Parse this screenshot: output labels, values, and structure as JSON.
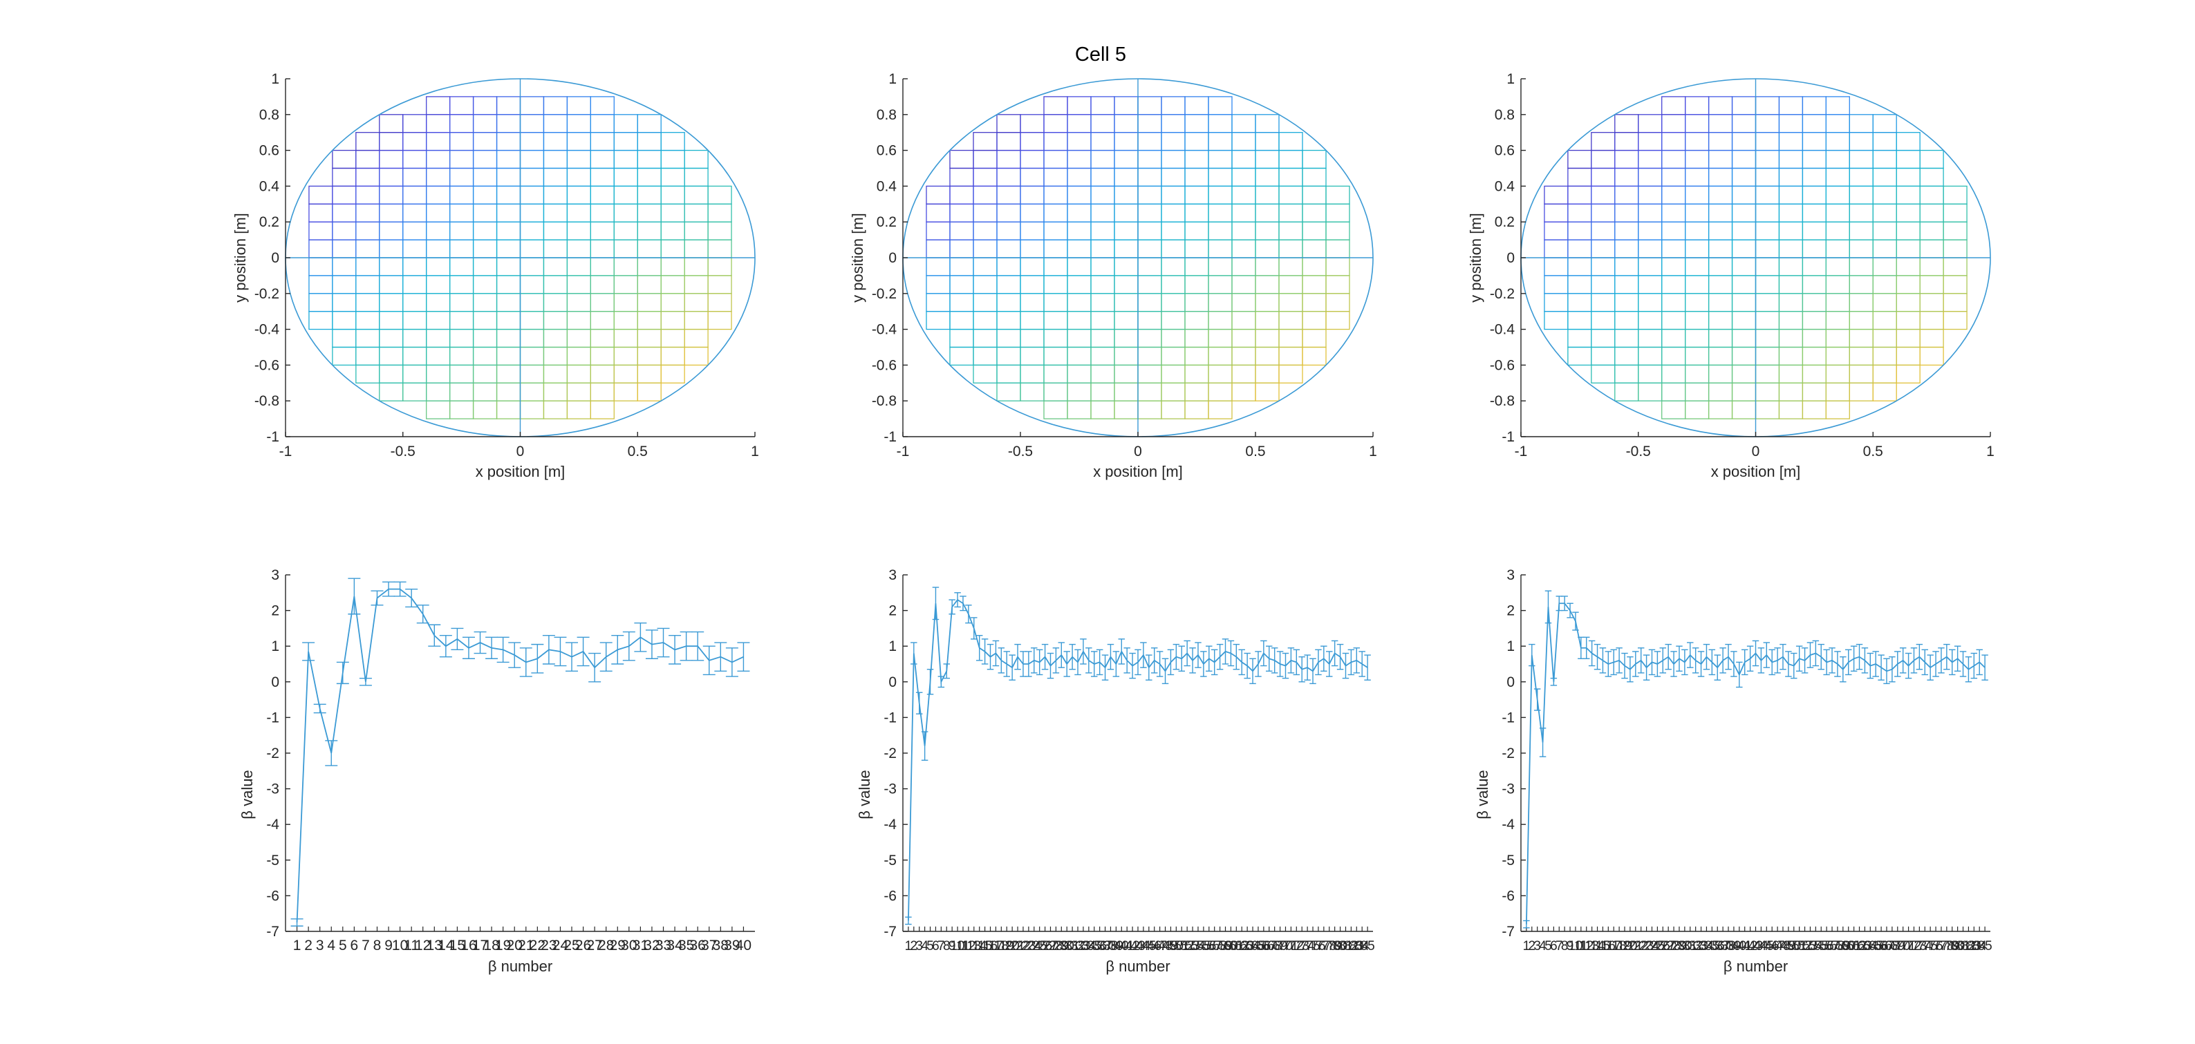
{
  "figure": {
    "title": "Cell 5",
    "line_color": "#3b9ad5",
    "axis_color": "#262626"
  },
  "chart_data": [
    {
      "type": "scatter",
      "name": "grid-map-1",
      "xlabel": "x position [m]",
      "ylabel": "y position [m]",
      "xlim": [
        -1,
        1
      ],
      "ylim": [
        -1,
        1
      ],
      "xticks": [
        "-1",
        "-0.5",
        "0",
        "0.5",
        "1"
      ],
      "yticks": [
        "1",
        "0.8",
        "0.6",
        "0.4",
        "0.2",
        "0",
        "-0.2",
        "-0.4",
        "-0.6",
        "-0.8",
        "-1"
      ],
      "boundary": "unit circle",
      "cell_size": 0.1,
      "colormap": "parula"
    },
    {
      "type": "scatter",
      "name": "grid-map-2",
      "xlabel": "x position [m]",
      "ylabel": "y position [m]",
      "xlim": [
        -1,
        1
      ],
      "ylim": [
        -1,
        1
      ],
      "xticks": [
        "-1",
        "-0.5",
        "0",
        "0.5",
        "1"
      ],
      "yticks": [
        "1",
        "0.8",
        "0.6",
        "0.4",
        "0.2",
        "0",
        "-0.2",
        "-0.4",
        "-0.6",
        "-0.8",
        "-1"
      ],
      "boundary": "unit circle",
      "cell_size": 0.1,
      "colormap": "parula"
    },
    {
      "type": "scatter",
      "name": "grid-map-3",
      "xlabel": "x position [m]",
      "ylabel": "y position [m]",
      "xlim": [
        -1,
        1
      ],
      "ylim": [
        -1,
        1
      ],
      "xticks": [
        "-1",
        "-0.5",
        "0",
        "0.5",
        "1"
      ],
      "yticks": [
        "1",
        "0.8",
        "0.6",
        "0.4",
        "0.2",
        "0",
        "-0.2",
        "-0.4",
        "-0.6",
        "-0.8",
        "-1"
      ],
      "boundary": "unit circle",
      "cell_size": 0.1,
      "colormap": "parula"
    },
    {
      "type": "line",
      "name": "beta-plot-1",
      "xlabel": "β number",
      "ylabel": "β value",
      "ylim": [
        -7,
        3
      ],
      "yticks": [
        "3",
        "2",
        "1",
        "0",
        "-1",
        "-2",
        "-3",
        "-4",
        "-5",
        "-6",
        "-7"
      ],
      "error_bars": true,
      "x": [
        1,
        2,
        3,
        4,
        5,
        6,
        7,
        8,
        9,
        10,
        11,
        12,
        13,
        14,
        15,
        16,
        17,
        18,
        19,
        20,
        21,
        22,
        23,
        24,
        25,
        26,
        27,
        28,
        29,
        30,
        31,
        32,
        33,
        34,
        35,
        36,
        37,
        38,
        39,
        40
      ],
      "xtick_labels": [
        "1",
        "2",
        "3",
        "4",
        "5",
        "6",
        "7",
        "8",
        "9",
        "10",
        "11",
        "12",
        "13",
        "14",
        "15",
        "16",
        "17",
        "18",
        "19",
        "20",
        "21",
        "22",
        "23",
        "24",
        "25",
        "26",
        "27",
        "28",
        "29",
        "30",
        "31",
        "32",
        "33",
        "34",
        "35",
        "36",
        "37",
        "38",
        "39",
        "40"
      ],
      "values": [
        -6.75,
        0.85,
        -0.75,
        -2.0,
        0.25,
        2.4,
        0.0,
        2.35,
        2.6,
        2.6,
        2.35,
        1.9,
        1.3,
        1.0,
        1.2,
        0.95,
        1.1,
        0.95,
        0.9,
        0.75,
        0.55,
        0.65,
        0.9,
        0.85,
        0.7,
        0.85,
        0.4,
        0.7,
        0.9,
        1.0,
        1.25,
        1.05,
        1.1,
        0.9,
        1.0,
        1.0,
        0.6,
        0.7,
        0.55,
        0.7
      ],
      "errors": [
        0.1,
        0.25,
        0.12,
        0.35,
        0.3,
        0.5,
        0.1,
        0.2,
        0.2,
        0.2,
        0.25,
        0.25,
        0.3,
        0.3,
        0.3,
        0.3,
        0.3,
        0.3,
        0.35,
        0.35,
        0.4,
        0.4,
        0.4,
        0.4,
        0.4,
        0.4,
        0.4,
        0.4,
        0.4,
        0.4,
        0.4,
        0.4,
        0.4,
        0.4,
        0.4,
        0.4,
        0.4,
        0.4,
        0.4,
        0.4
      ]
    },
    {
      "type": "line",
      "name": "beta-plot-2",
      "xlabel": "β number",
      "ylabel": "β value",
      "ylim": [
        -7,
        3
      ],
      "yticks": [
        "3",
        "2",
        "1",
        "0",
        "-1",
        "-2",
        "-3",
        "-4",
        "-5",
        "-6",
        "-7"
      ],
      "error_bars": true,
      "x": [
        1,
        2,
        3,
        4,
        5,
        6,
        7,
        8,
        9,
        10,
        11,
        12,
        13,
        14,
        15,
        16,
        17,
        18,
        19,
        20,
        21,
        22,
        23,
        24,
        25,
        26,
        27,
        28,
        29,
        30,
        31,
        32,
        33,
        34,
        35,
        36,
        37,
        38,
        39,
        40,
        41,
        42,
        43,
        44,
        45,
        46,
        47,
        48,
        49,
        50,
        51,
        52,
        53,
        54,
        55,
        56,
        57,
        58,
        59,
        60,
        61,
        62,
        63,
        64,
        65,
        66,
        67,
        68,
        69,
        70,
        71,
        72,
        73,
        74,
        75,
        76,
        77,
        78,
        79,
        80,
        81,
        82,
        83,
        84,
        85
      ],
      "xtick_labels": [
        "1",
        "2",
        "3",
        "4",
        "5",
        "6",
        "7",
        "8",
        "9",
        "10",
        "11",
        "12",
        "13",
        "14",
        "15",
        "16",
        "17",
        "18",
        "19",
        "20",
        "21",
        "22",
        "23",
        "24",
        "25",
        "26",
        "27",
        "28",
        "29",
        "30",
        "31",
        "32",
        "33",
        "34",
        "35",
        "36",
        "37",
        "38",
        "39",
        "40",
        "41",
        "42",
        "43",
        "44",
        "45",
        "46",
        "47",
        "48",
        "49",
        "50",
        "51",
        "52",
        "53",
        "54",
        "55",
        "56",
        "57",
        "58",
        "59",
        "60",
        "61",
        "62",
        "63",
        "64",
        "65",
        "66",
        "67",
        "68",
        "69",
        "70",
        "71",
        "72",
        "73",
        "74",
        "75",
        "76",
        "77",
        "78",
        "79",
        "80",
        "81",
        "82",
        "83",
        "84",
        "85"
      ],
      "values": [
        -6.7,
        0.8,
        -0.6,
        -1.8,
        0.0,
        2.2,
        0.0,
        0.3,
        2.1,
        2.3,
        2.2,
        1.9,
        1.5,
        0.95,
        0.85,
        0.7,
        0.8,
        0.6,
        0.5,
        0.4,
        0.7,
        0.5,
        0.5,
        0.6,
        0.55,
        0.7,
        0.45,
        0.6,
        0.75,
        0.5,
        0.7,
        0.55,
        0.85,
        0.6,
        0.5,
        0.55,
        0.4,
        0.7,
        0.5,
        0.85,
        0.6,
        0.45,
        0.55,
        0.75,
        0.4,
        0.6,
        0.5,
        0.3,
        0.55,
        0.7,
        0.65,
        0.8,
        0.6,
        0.75,
        0.5,
        0.65,
        0.55,
        0.7,
        0.85,
        0.8,
        0.7,
        0.55,
        0.45,
        0.3,
        0.5,
        0.8,
        0.65,
        0.6,
        0.5,
        0.45,
        0.6,
        0.55,
        0.35,
        0.4,
        0.3,
        0.55,
        0.65,
        0.5,
        0.8,
        0.7,
        0.45,
        0.55,
        0.6,
        0.5,
        0.4
      ],
      "errors": [
        0.1,
        0.3,
        0.3,
        0.4,
        0.35,
        0.45,
        0.15,
        0.2,
        0.2,
        0.2,
        0.2,
        0.25,
        0.3,
        0.35,
        0.35,
        0.35,
        0.35,
        0.35,
        0.35,
        0.35,
        0.35,
        0.35,
        0.35,
        0.35,
        0.35,
        0.35,
        0.35,
        0.35,
        0.35,
        0.35,
        0.35,
        0.35,
        0.35,
        0.35,
        0.35,
        0.35,
        0.35,
        0.35,
        0.35,
        0.35,
        0.35,
        0.35,
        0.35,
        0.35,
        0.35,
        0.35,
        0.35,
        0.35,
        0.35,
        0.35,
        0.35,
        0.35,
        0.35,
        0.35,
        0.35,
        0.35,
        0.35,
        0.35,
        0.35,
        0.35,
        0.35,
        0.35,
        0.35,
        0.35,
        0.35,
        0.35,
        0.35,
        0.35,
        0.35,
        0.35,
        0.35,
        0.35,
        0.35,
        0.35,
        0.35,
        0.35,
        0.35,
        0.35,
        0.35,
        0.35,
        0.35,
        0.35,
        0.35,
        0.35,
        0.35
      ]
    },
    {
      "type": "line",
      "name": "beta-plot-3",
      "xlabel": "β number",
      "ylabel": "β value",
      "ylim": [
        -7,
        3
      ],
      "yticks": [
        "3",
        "2",
        "1",
        "0",
        "-1",
        "-2",
        "-3",
        "-4",
        "-5",
        "-6",
        "-7"
      ],
      "error_bars": true,
      "x": [
        1,
        2,
        3,
        4,
        5,
        6,
        7,
        8,
        9,
        10,
        11,
        12,
        13,
        14,
        15,
        16,
        17,
        18,
        19,
        20,
        21,
        22,
        23,
        24,
        25,
        26,
        27,
        28,
        29,
        30,
        31,
        32,
        33,
        34,
        35,
        36,
        37,
        38,
        39,
        40,
        41,
        42,
        43,
        44,
        45,
        46,
        47,
        48,
        49,
        50,
        51,
        52,
        53,
        54,
        55,
        56,
        57,
        58,
        59,
        60,
        61,
        62,
        63,
        64,
        65,
        66,
        67,
        68,
        69,
        70,
        71,
        72,
        73,
        74,
        75,
        76,
        77,
        78,
        79,
        80,
        81,
        82,
        83,
        84,
        85
      ],
      "xtick_labels": [
        "1",
        "2",
        "3",
        "4",
        "5",
        "6",
        "7",
        "8",
        "9",
        "10",
        "11",
        "12",
        "13",
        "14",
        "15",
        "16",
        "17",
        "18",
        "19",
        "20",
        "21",
        "22",
        "23",
        "24",
        "25",
        "26",
        "27",
        "28",
        "29",
        "30",
        "31",
        "32",
        "33",
        "34",
        "35",
        "36",
        "37",
        "38",
        "39",
        "40",
        "41",
        "42",
        "43",
        "44",
        "45",
        "46",
        "47",
        "48",
        "49",
        "50",
        "51",
        "52",
        "53",
        "54",
        "55",
        "56",
        "57",
        "58",
        "59",
        "60",
        "61",
        "62",
        "63",
        "64",
        "65",
        "66",
        "67",
        "68",
        "69",
        "70",
        "71",
        "72",
        "73",
        "74",
        "75",
        "76",
        "77",
        "78",
        "79",
        "80",
        "81",
        "82",
        "83",
        "84",
        "85"
      ],
      "values": [
        -6.8,
        0.75,
        -0.5,
        -1.7,
        2.1,
        0.0,
        2.2,
        2.2,
        2.0,
        1.7,
        0.95,
        0.95,
        0.8,
        0.7,
        0.6,
        0.5,
        0.55,
        0.6,
        0.45,
        0.35,
        0.5,
        0.6,
        0.4,
        0.55,
        0.5,
        0.6,
        0.7,
        0.5,
        0.65,
        0.55,
        0.75,
        0.6,
        0.5,
        0.7,
        0.55,
        0.4,
        0.6,
        0.7,
        0.5,
        0.2,
        0.55,
        0.65,
        0.8,
        0.6,
        0.75,
        0.55,
        0.6,
        0.7,
        0.5,
        0.45,
        0.65,
        0.6,
        0.75,
        0.8,
        0.7,
        0.55,
        0.6,
        0.5,
        0.35,
        0.55,
        0.65,
        0.7,
        0.6,
        0.45,
        0.5,
        0.4,
        0.3,
        0.35,
        0.5,
        0.6,
        0.45,
        0.6,
        0.7,
        0.55,
        0.4,
        0.5,
        0.6,
        0.7,
        0.55,
        0.65,
        0.5,
        0.35,
        0.45,
        0.55,
        0.4
      ],
      "errors": [
        0.1,
        0.3,
        0.3,
        0.4,
        0.45,
        0.1,
        0.2,
        0.2,
        0.2,
        0.25,
        0.3,
        0.3,
        0.35,
        0.35,
        0.35,
        0.35,
        0.35,
        0.35,
        0.35,
        0.35,
        0.35,
        0.35,
        0.35,
        0.35,
        0.35,
        0.35,
        0.35,
        0.35,
        0.35,
        0.35,
        0.35,
        0.35,
        0.35,
        0.35,
        0.35,
        0.35,
        0.35,
        0.35,
        0.35,
        0.35,
        0.35,
        0.35,
        0.35,
        0.35,
        0.35,
        0.35,
        0.35,
        0.35,
        0.35,
        0.35,
        0.35,
        0.35,
        0.35,
        0.35,
        0.35,
        0.35,
        0.35,
        0.35,
        0.35,
        0.35,
        0.35,
        0.35,
        0.35,
        0.35,
        0.35,
        0.35,
        0.35,
        0.35,
        0.35,
        0.35,
        0.35,
        0.35,
        0.35,
        0.35,
        0.35,
        0.35,
        0.35,
        0.35,
        0.35,
        0.35,
        0.35,
        0.35,
        0.35,
        0.35,
        0.35
      ]
    }
  ]
}
